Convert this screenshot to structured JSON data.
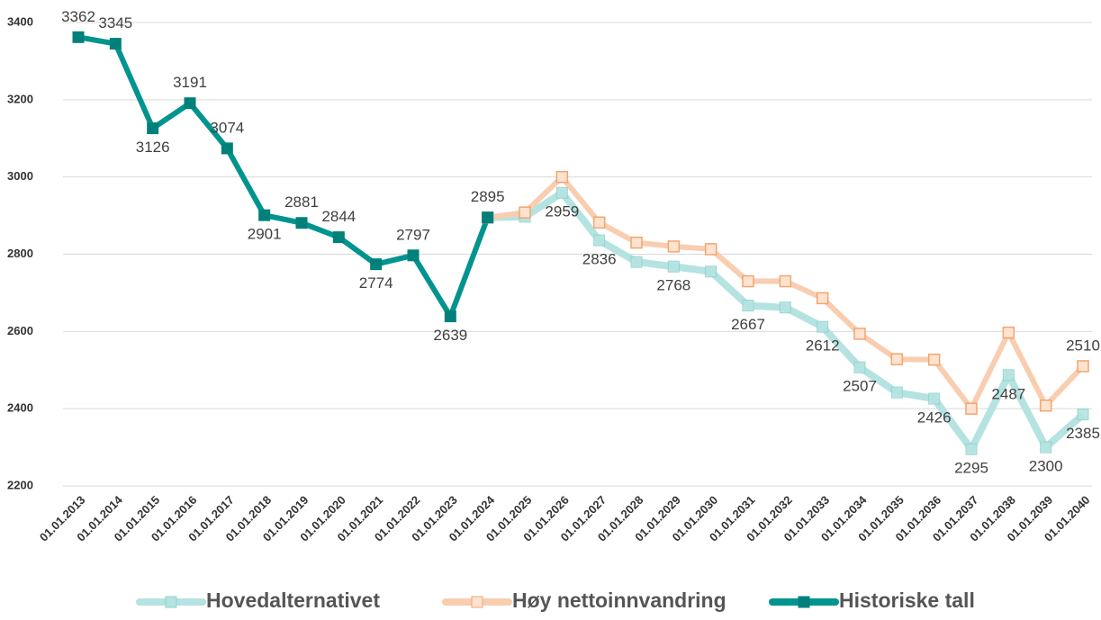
{
  "chart_data": {
    "type": "line",
    "categories": [
      "01.01.2013",
      "01.01.2014",
      "01.01.2015",
      "01.01.2016",
      "01.01.2017",
      "01.01.2018",
      "01.01.2019",
      "01.01.2020",
      "01.01.2021",
      "01.01.2022",
      "01.01.2023",
      "01.01.2024",
      "01.01.2025",
      "01.01.2026",
      "01.01.2027",
      "01.01.2028",
      "01.01.2029",
      "01.01.2030",
      "01.01.2031",
      "01.01.2032",
      "01.01.2033",
      "01.01.2034",
      "01.01.2035",
      "01.01.2036",
      "01.01.2037",
      "01.01.2038",
      "01.01.2039",
      "01.01.2040"
    ],
    "series": [
      {
        "name": "Hovedalternativet",
        "color": "#b5e3e1",
        "marker_color": "#8fd3d0",
        "label_color": "#404040",
        "label_position": "below",
        "values": [
          null,
          null,
          null,
          null,
          null,
          null,
          null,
          null,
          null,
          null,
          null,
          2895,
          2897,
          2959,
          2836,
          2780,
          2768,
          2755,
          2667,
          2662,
          2612,
          2507,
          2442,
          2426,
          2295,
          2487,
          2300,
          2385
        ],
        "value_labels": [
          null,
          null,
          null,
          null,
          null,
          null,
          null,
          null,
          null,
          null,
          null,
          null,
          null,
          "2959",
          "2836",
          null,
          "2768",
          null,
          "2667",
          null,
          "2612",
          "2507",
          null,
          "2426",
          "2295",
          "2487",
          "2300",
          "2385"
        ]
      },
      {
        "name": "Høy nettoinnvandring",
        "color": "#f8cdb0",
        "marker_color": "#f3a56f",
        "label_color": "#e8782a",
        "label_position": "above",
        "values": [
          null,
          null,
          null,
          null,
          null,
          null,
          null,
          null,
          null,
          null,
          null,
          2895,
          2908,
          3000,
          2882,
          2830,
          2820,
          2813,
          2730,
          2730,
          2686,
          2594,
          2528,
          2527,
          2400,
          2597,
          2408,
          2510
        ],
        "value_labels": [
          null,
          null,
          null,
          null,
          null,
          null,
          null,
          null,
          null,
          null,
          null,
          null,
          null,
          null,
          null,
          null,
          null,
          null,
          null,
          null,
          null,
          null,
          null,
          null,
          null,
          null,
          null,
          "2510"
        ]
      },
      {
        "name": "Historiske tall",
        "color": "#00948f",
        "marker_color": "#00807b",
        "label_color": "#404040",
        "label_position": "auto",
        "values": [
          3362,
          3345,
          3126,
          3191,
          3074,
          2901,
          2881,
          2844,
          2774,
          2797,
          2639,
          2895,
          null,
          null,
          null,
          null,
          null,
          null,
          null,
          null,
          null,
          null,
          null,
          null,
          null,
          null,
          null,
          null
        ],
        "value_labels": [
          "3362",
          "3345",
          "3126",
          "3191",
          "3074",
          "2901",
          "2881",
          "2844",
          "2774",
          "2797",
          "2639",
          "2895",
          null,
          null,
          null,
          null,
          null,
          null,
          null,
          null,
          null,
          null,
          null,
          null,
          null,
          null,
          null,
          null
        ]
      }
    ],
    "ylim": [
      2200,
      3400
    ],
    "yticks": [
      2200,
      2400,
      2600,
      2800,
      3000,
      3200,
      3400
    ],
    "grid": true,
    "legend": "bottom"
  }
}
